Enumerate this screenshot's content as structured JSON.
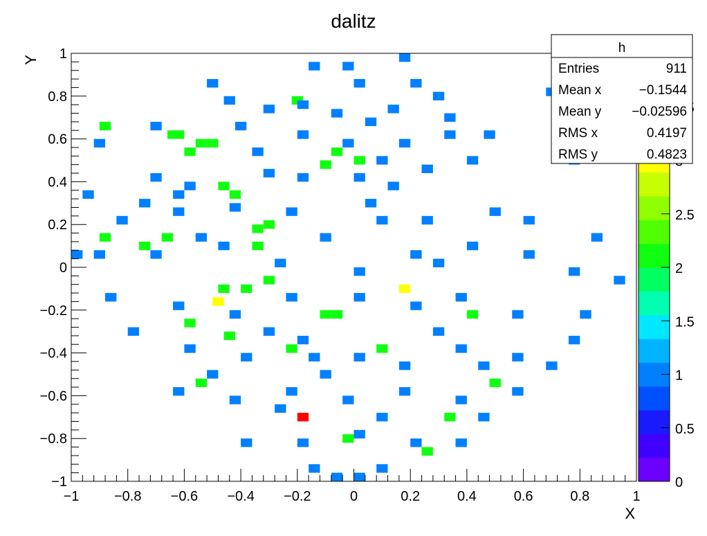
{
  "chart_data": {
    "type": "heatmap",
    "title": "dalitz",
    "xlabel": "X",
    "ylabel": "Y",
    "xlim": [
      -1,
      1
    ],
    "ylim": [
      -1,
      1
    ],
    "zlim": [
      0,
      4
    ],
    "bins": 50,
    "x_ticks": [
      "−1",
      "−0.8",
      "−0.6",
      "−0.4",
      "−0.2",
      "0",
      "0.2",
      "0.4",
      "0.6",
      "0.8",
      "1"
    ],
    "y_ticks": [
      "−1",
      "−0.8",
      "−0.6",
      "−0.4",
      "−0.2",
      "0",
      "0.2",
      "0.4",
      "0.6",
      "0.8",
      "1"
    ],
    "z_ticks": [
      "0",
      "0.5",
      "1",
      "1.5",
      "2",
      "2.5",
      "3",
      "3.5"
    ],
    "palette_stops": [
      "#6b00ff",
      "#3f00ff",
      "#1a1aff",
      "#0050ff",
      "#0080ff",
      "#00b4ff",
      "#00e8ff",
      "#00ffb0",
      "#00ff60",
      "#10ff10",
      "#50ff00",
      "#90ff00",
      "#c8ff00",
      "#ffff00",
      "#ffcc00",
      "#ff9900",
      "#ff5500",
      "#ff0000"
    ],
    "stats": {
      "name": "h",
      "rows": [
        {
          "label": "Entries",
          "value": "911"
        },
        {
          "label": "Mean x",
          "value": "−0.1544"
        },
        {
          "label": "Mean y",
          "value": "−0.02596"
        },
        {
          "label": "RMS x",
          "value": "0.4197"
        },
        {
          "label": "RMS y",
          "value": "0.4823"
        }
      ]
    },
    "cells": [
      [
        -0.48,
        -0.16,
        3
      ],
      [
        0.18,
        -0.1,
        3
      ],
      [
        -0.18,
        -0.7,
        4
      ],
      [
        -0.62,
        0.62,
        2
      ],
      [
        -0.64,
        0.62,
        2
      ],
      [
        -0.58,
        0.54,
        2
      ],
      [
        -0.54,
        0.58,
        2
      ],
      [
        -0.46,
        0.38,
        2
      ],
      [
        -0.42,
        0.34,
        2
      ],
      [
        -0.88,
        0.14,
        2
      ],
      [
        -0.66,
        0.14,
        2
      ],
      [
        -0.34,
        0.18,
        2
      ],
      [
        -0.3,
        0.2,
        2
      ],
      [
        -0.2,
        0.78,
        2
      ],
      [
        -0.1,
        0.48,
        2
      ],
      [
        -0.06,
        0.54,
        2
      ],
      [
        0.02,
        0.5,
        2
      ],
      [
        -0.5,
        0.58,
        2
      ],
      [
        -0.58,
        -0.26,
        2
      ],
      [
        -0.44,
        -0.32,
        2
      ],
      [
        -0.46,
        -0.1,
        2
      ],
      [
        -0.38,
        -0.1,
        2
      ],
      [
        -0.3,
        -0.06,
        2
      ],
      [
        -0.1,
        -0.22,
        2
      ],
      [
        -0.06,
        -0.22,
        2
      ],
      [
        0.1,
        -0.38,
        2
      ],
      [
        -0.22,
        -0.38,
        2
      ],
      [
        -0.54,
        -0.54,
        2
      ],
      [
        0.5,
        -0.54,
        2
      ],
      [
        0.42,
        -0.22,
        2
      ],
      [
        0.34,
        -0.7,
        2
      ],
      [
        0.26,
        -0.86,
        2
      ],
      [
        -0.02,
        -0.8,
        2
      ],
      [
        -0.74,
        0.1,
        2
      ],
      [
        -0.34,
        0.1,
        2
      ],
      [
        -0.88,
        0.66,
        2
      ],
      [
        -0.44,
        0.78,
        1
      ],
      [
        -0.3,
        0.74,
        1
      ],
      [
        -0.18,
        0.76,
        1
      ],
      [
        -0.06,
        0.72,
        1
      ],
      [
        0.06,
        0.68,
        1
      ],
      [
        0.14,
        0.74,
        1
      ],
      [
        0.22,
        0.86,
        1
      ],
      [
        0.3,
        0.8,
        1
      ],
      [
        -0.7,
        0.66,
        1
      ],
      [
        -0.4,
        0.66,
        1
      ],
      [
        -0.18,
        0.62,
        1
      ],
      [
        -0.02,
        0.58,
        1
      ],
      [
        0.18,
        0.58,
        1
      ],
      [
        0.34,
        0.62,
        1
      ],
      [
        0.48,
        0.62,
        1
      ],
      [
        -0.74,
        0.3,
        1
      ],
      [
        -0.58,
        0.38,
        1
      ],
      [
        -0.3,
        0.44,
        1
      ],
      [
        -0.18,
        0.42,
        1
      ],
      [
        0.02,
        0.42,
        1
      ],
      [
        0.14,
        0.38,
        1
      ],
      [
        0.26,
        0.46,
        1
      ],
      [
        0.42,
        0.5,
        1
      ],
      [
        -0.82,
        0.22,
        1
      ],
      [
        -0.62,
        0.26,
        1
      ],
      [
        -0.42,
        0.28,
        1
      ],
      [
        -0.22,
        0.26,
        1
      ],
      [
        0.06,
        0.3,
        1
      ],
      [
        0.26,
        0.22,
        1
      ],
      [
        0.5,
        0.26,
        1
      ],
      [
        -0.9,
        0.06,
        1
      ],
      [
        -0.7,
        0.06,
        1
      ],
      [
        -0.46,
        0.1,
        1
      ],
      [
        -0.26,
        0.02,
        1
      ],
      [
        0.02,
        -0.02,
        1
      ],
      [
        0.22,
        0.06,
        1
      ],
      [
        0.42,
        0.1,
        1
      ],
      [
        0.62,
        0.06,
        1
      ],
      [
        -0.86,
        -0.14,
        1
      ],
      [
        -0.62,
        -0.18,
        1
      ],
      [
        -0.42,
        -0.22,
        1
      ],
      [
        -0.22,
        -0.14,
        1
      ],
      [
        0.02,
        -0.14,
        1
      ],
      [
        0.22,
        -0.18,
        1
      ],
      [
        0.38,
        -0.14,
        1
      ],
      [
        0.58,
        -0.22,
        1
      ],
      [
        -0.78,
        -0.3,
        1
      ],
      [
        -0.58,
        -0.38,
        1
      ],
      [
        -0.38,
        -0.42,
        1
      ],
      [
        -0.18,
        -0.34,
        1
      ],
      [
        0.02,
        -0.42,
        1
      ],
      [
        0.18,
        -0.46,
        1
      ],
      [
        0.38,
        -0.38,
        1
      ],
      [
        0.58,
        -0.42,
        1
      ],
      [
        -0.62,
        -0.58,
        1
      ],
      [
        -0.42,
        -0.62,
        1
      ],
      [
        -0.22,
        -0.58,
        1
      ],
      [
        -0.02,
        -0.62,
        1
      ],
      [
        0.18,
        -0.58,
        1
      ],
      [
        0.38,
        -0.62,
        1
      ],
      [
        0.58,
        -0.58,
        1
      ],
      [
        -0.38,
        -0.82,
        1
      ],
      [
        -0.18,
        -0.82,
        1
      ],
      [
        0.02,
        -0.78,
        1
      ],
      [
        0.22,
        -0.82,
        1
      ],
      [
        0.38,
        -0.82,
        1
      ],
      [
        -0.14,
        -0.94,
        1
      ],
      [
        0.02,
        -0.98,
        1
      ],
      [
        0.1,
        -0.94,
        1
      ],
      [
        -0.06,
        -0.98,
        1
      ],
      [
        0.62,
        0.22,
        1
      ],
      [
        0.86,
        0.14,
        1
      ],
      [
        0.94,
        -0.06,
        1
      ],
      [
        0.78,
        -0.02,
        1
      ],
      [
        0.82,
        -0.22,
        1
      ],
      [
        0.78,
        -0.34,
        1
      ],
      [
        0.7,
        -0.46,
        1
      ],
      [
        0.7,
        0.82,
        1
      ],
      [
        0.78,
        0.5,
        1
      ],
      [
        0.18,
        0.98,
        1
      ],
      [
        -0.14,
        0.94,
        1
      ],
      [
        0.02,
        0.86,
        1
      ],
      [
        -0.98,
        0.06,
        1
      ],
      [
        -0.94,
        0.34,
        1
      ],
      [
        -0.9,
        0.58,
        1
      ],
      [
        -0.62,
        0.34,
        1
      ],
      [
        -0.54,
        0.14,
        1
      ],
      [
        -0.3,
        -0.3,
        1
      ],
      [
        -0.14,
        -0.42,
        1
      ],
      [
        0.3,
        -0.3,
        1
      ],
      [
        0.46,
        -0.46,
        1
      ],
      [
        -0.26,
        -0.66,
        1
      ],
      [
        0.1,
        -0.7,
        1
      ],
      [
        0.46,
        -0.7,
        1
      ],
      [
        -0.5,
        0.86,
        1
      ],
      [
        0.34,
        0.7,
        1
      ],
      [
        -0.7,
        0.42,
        1
      ],
      [
        0.1,
        0.22,
        1
      ],
      [
        -0.1,
        0.14,
        1
      ],
      [
        0.3,
        0.02,
        1
      ],
      [
        -0.02,
        0.94,
        1
      ],
      [
        -0.34,
        0.54,
        1
      ],
      [
        0.1,
        0.5,
        1
      ],
      [
        -0.5,
        -0.5,
        1
      ],
      [
        -0.1,
        -0.5,
        1
      ]
    ]
  }
}
